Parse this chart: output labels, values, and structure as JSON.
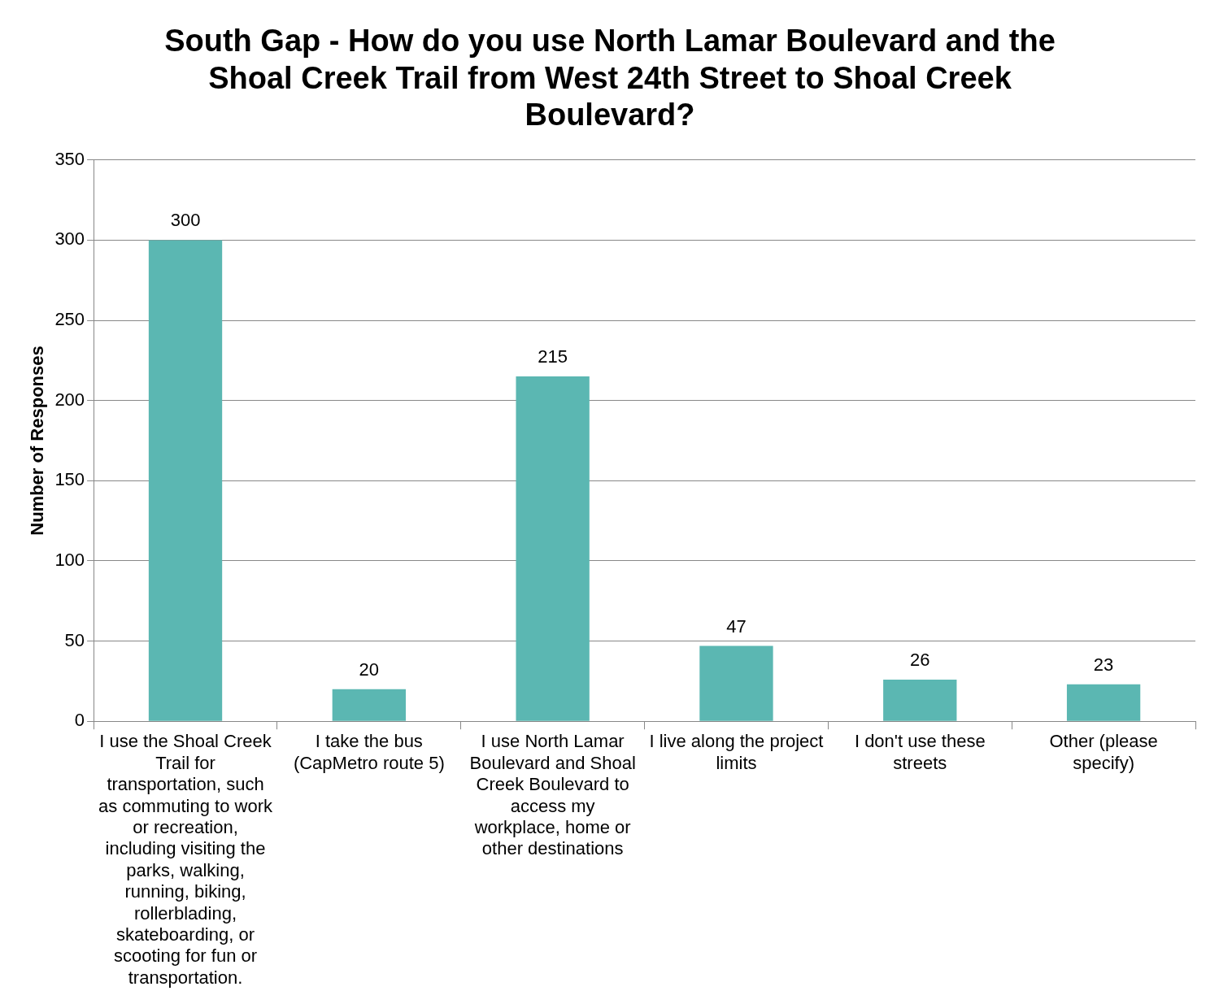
{
  "chart_data": {
    "type": "bar",
    "title": "South Gap - How do you use North Lamar Boulevard and the Shoal Creek Trail from West 24th Street to Shoal Creek Boulevard?",
    "ylabel": "Number of Responses",
    "categories": [
      "I use the Shoal Creek Trail for transportation, such as commuting to work or recreation, including visiting the parks, walking, running, biking, rollerblading, skateboarding, or scooting for fun or transportation.",
      "I take the bus (CapMetro route 5)",
      "I use North Lamar Boulevard and Shoal Creek Boulevard to access my workplace, home or other destinations",
      "I live along the project limits",
      "I don't use these streets",
      "Other (please specify)"
    ],
    "values": [
      300,
      20,
      215,
      47,
      26,
      23
    ],
    "color": "#5bb7b2",
    "ylim": [
      0,
      350
    ],
    "yticks": [
      0,
      50,
      100,
      150,
      200,
      250,
      300,
      350
    ],
    "grid": "y",
    "legend": false,
    "data_labels": true
  }
}
